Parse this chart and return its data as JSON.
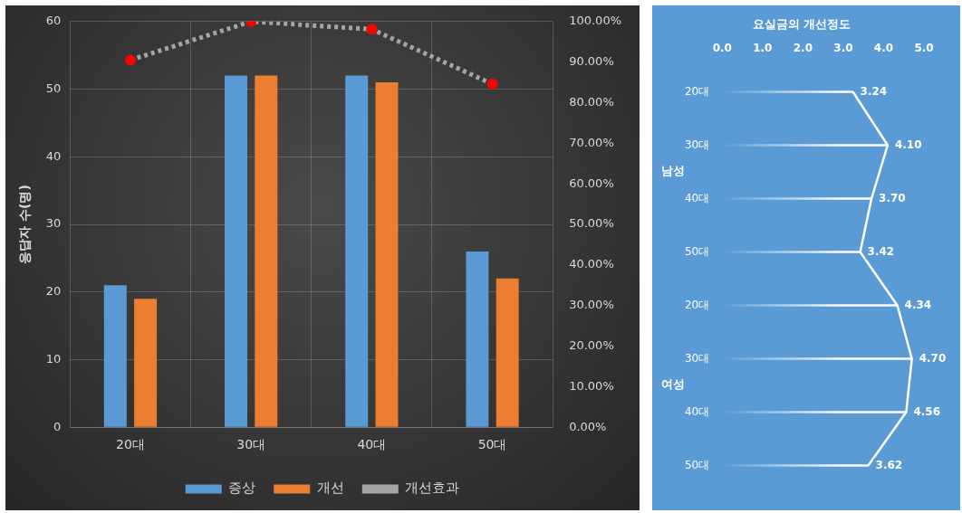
{
  "chart_data": [
    {
      "type": "bar",
      "categories": [
        "20대",
        "30대",
        "40대",
        "50대"
      ],
      "ylabel": "응답자 수(명)",
      "ylim": [
        0,
        60
      ],
      "yticks": [
        0,
        10,
        20,
        30,
        40,
        50,
        60
      ],
      "y2lim": [
        0,
        100
      ],
      "y2ticks": [
        {
          "value": 0,
          "label": "0.00%"
        },
        {
          "value": 10,
          "label": "10.00%"
        },
        {
          "value": 20,
          "label": "20.00%"
        },
        {
          "value": 30,
          "label": "30.00%"
        },
        {
          "value": 40,
          "label": "40.00%"
        },
        {
          "value": 50,
          "label": "50.00%"
        },
        {
          "value": 60,
          "label": "60.00%"
        },
        {
          "value": 70,
          "label": "70.00%"
        },
        {
          "value": 80,
          "label": "80.00%"
        },
        {
          "value": 90,
          "label": "90.00%"
        },
        {
          "value": 100,
          "label": "100.00%"
        }
      ],
      "grid": true,
      "legend": "bottom",
      "series": [
        {
          "name": "증상",
          "color": "#5b9bd5",
          "values": [
            21,
            52,
            52,
            26
          ]
        },
        {
          "name": "개선",
          "color": "#ed7d31",
          "values": [
            19,
            52,
            51,
            22
          ]
        },
        {
          "name": "개선효과",
          "type": "line",
          "axis": "y2",
          "color": "#a5a5a5",
          "colors": [
            "#ff0000",
            "#ff0000",
            "#ff0000",
            "#ff0000"
          ],
          "marker": "circle",
          "line_style": "dotted",
          "values": [
            90.5,
            100,
            98.1,
            84.6
          ]
        }
      ]
    },
    {
      "type": "bar",
      "orientation": "horizontal",
      "title": "요실금의 개선정도",
      "categories": [
        "20대",
        "30대",
        "40대",
        "50대",
        "20대",
        "30대",
        "40대",
        "50대"
      ],
      "xlim": [
        0,
        5
      ],
      "xticks": [
        {
          "value": 0,
          "label": "0.0"
        },
        {
          "value": 1,
          "label": "1.0"
        },
        {
          "value": 2,
          "label": "2.0"
        },
        {
          "value": 3,
          "label": "3.0"
        },
        {
          "value": 4,
          "label": "4.0"
        },
        {
          "value": 5,
          "label": "5.0"
        }
      ],
      "grid": false,
      "legend": false,
      "annotations": [
        "남성",
        "여성"
      ],
      "series": [
        {
          "color": "#ffffff",
          "values": [
            3.24,
            4.1,
            3.7,
            3.42,
            4.34,
            4.7,
            4.56,
            3.62
          ],
          "value_labels": [
            "3.24",
            "4.10",
            "3.70",
            "3.42",
            "4.34",
            "4.70",
            "4.56",
            "3.62"
          ]
        },
        {
          "type": "line",
          "color": "#ffffff",
          "marker": "none",
          "values": [
            3.24,
            4.1,
            3.7,
            3.42,
            4.34,
            4.7,
            4.56,
            3.62
          ]
        }
      ]
    }
  ]
}
